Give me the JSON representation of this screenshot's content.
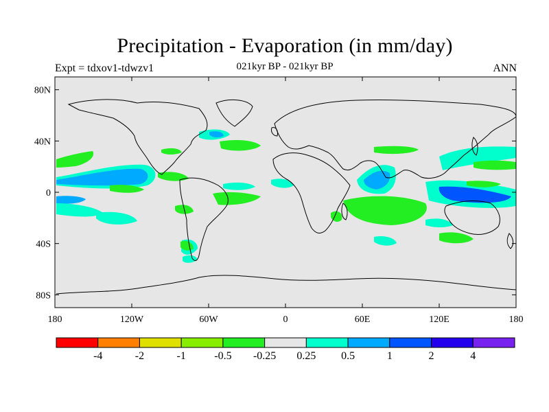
{
  "title": "Precipitation - Evaporation (in mm/day)",
  "subtitle": "021kyr BP - 021kyr BP",
  "left_label": "Expt = tdxov1-tdwzv1",
  "right_label": "ANN",
  "lat_ticks": [
    {
      "value": 80,
      "label": "80N"
    },
    {
      "value": 40,
      "label": "40N"
    },
    {
      "value": 0,
      "label": "0"
    },
    {
      "value": -40,
      "label": "40S"
    },
    {
      "value": -80,
      "label": "80S"
    }
  ],
  "lon_ticks": [
    {
      "value": -180,
      "label": "180"
    },
    {
      "value": -120,
      "label": "120W"
    },
    {
      "value": -60,
      "label": "60W"
    },
    {
      "value": 0,
      "label": "0"
    },
    {
      "value": 60,
      "label": "60E"
    },
    {
      "value": 120,
      "label": "120E"
    },
    {
      "value": 180,
      "label": "180"
    }
  ],
  "colorbar": {
    "colors": [
      "#ff0000",
      "#ff8000",
      "#e0e000",
      "#88ee00",
      "#22ee22",
      "#e6e6e6",
      "#00ffcc",
      "#00aaff",
      "#0055ff",
      "#2200ee",
      "#7722ee"
    ],
    "labels": [
      "-4",
      "-2",
      "-1",
      "-0.5",
      "-0.25",
      "0.25",
      "0.5",
      "1",
      "2",
      "4"
    ]
  },
  "background_color": "#e6e6e6"
}
